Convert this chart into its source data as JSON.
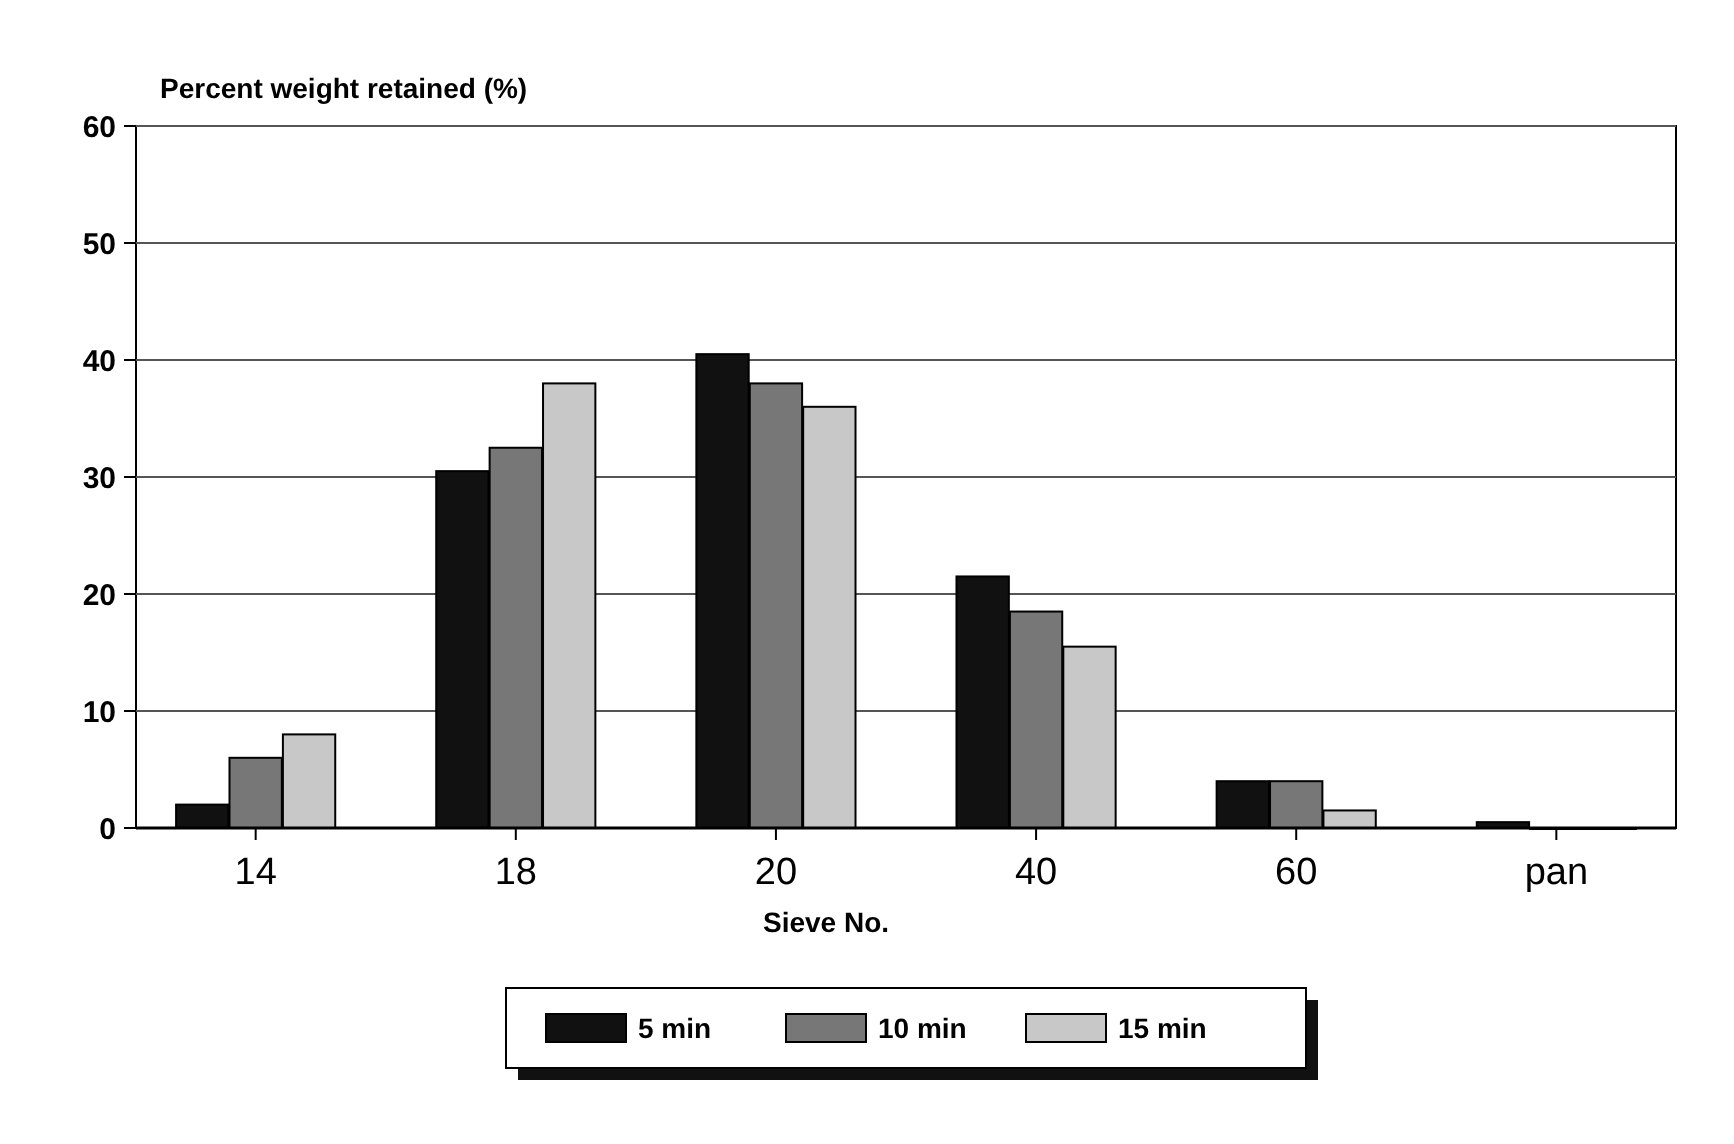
{
  "chart_data": {
    "type": "bar",
    "ylabel": "Percent weight retained (%)",
    "xlabel": "Sieve No.",
    "categories": [
      "14",
      "18",
      "20",
      "40",
      "60",
      "pan"
    ],
    "series": [
      {
        "name": "5 min",
        "color": "#111111",
        "values": [
          2,
          30.5,
          40.5,
          21.5,
          4,
          0.5
        ]
      },
      {
        "name": "10 min",
        "color": "#777777",
        "values": [
          6,
          32.5,
          38,
          18.5,
          4,
          0
        ]
      },
      {
        "name": "15 min",
        "color": "#c8c8c8",
        "values": [
          8,
          38,
          36,
          15.5,
          1.5,
          0
        ]
      }
    ],
    "ylim": [
      0,
      60
    ],
    "yticks": [
      0,
      10,
      20,
      30,
      40,
      50,
      60
    ],
    "grid": "y",
    "legend": "bottom"
  }
}
